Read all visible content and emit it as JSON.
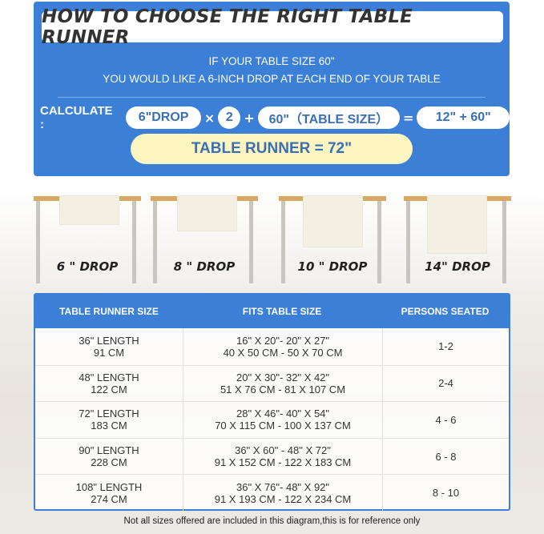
{
  "header": {
    "title": "HOW TO CHOOSE THE RIGHT TABLE RUNNER",
    "intro_line1": "IF YOUR TABLE SIZE 60\"",
    "intro_line2": "YOU WOULD LIKE A 6-INCH DROP AT EACH END OF YOUR TABLE"
  },
  "calculation": {
    "label": "CALCULATE :",
    "drop": "6\"DROP",
    "times": "×",
    "multiplier": "2",
    "plus": "+",
    "table_size": "60\"（TABLE SIZE）",
    "equals": "=",
    "sum": "12\" + 60\"",
    "result": "TABLE RUNNER = 72\""
  },
  "drops": [
    {
      "label": "6 \" DROP",
      "inches": 6
    },
    {
      "label": "8 \" DROP",
      "inches": 8
    },
    {
      "label": "10 \" DROP",
      "inches": 10
    },
    {
      "label": "14\" DROP",
      "inches": 14
    }
  ],
  "size_table": {
    "headers": [
      "TABLE RUNNER SIZE",
      "FITS TABLE SIZE",
      "PERSONS SEATED"
    ],
    "rows": [
      {
        "runner_in": "36\" LENGTH",
        "runner_cm": "91 CM",
        "fits_in": "16\" X 20\"- 20\" X 27\"",
        "fits_cm": "40 X 50 CM - 50 X 70 CM",
        "persons": "1-2"
      },
      {
        "runner_in": "48\" LENGTH",
        "runner_cm": "122 CM",
        "fits_in": "20\" X 30\"- 32\" X 42\"",
        "fits_cm": "51 X 76 CM - 81 X 107 CM",
        "persons": "2-4"
      },
      {
        "runner_in": "72\" LENGTH",
        "runner_cm": "183 CM",
        "fits_in": "28\" X 46\"- 40\" X 54\"",
        "fits_cm": "70 X 115 CM - 100 X 137 CM",
        "persons": "4 - 6"
      },
      {
        "runner_in": "90\" LENGTH",
        "runner_cm": "228 CM",
        "fits_in": "36\" X 60\" - 48\" X 72\"",
        "fits_cm": "91 X 152 CM - 122 X 183 CM",
        "persons": "6 - 8"
      },
      {
        "runner_in": "108\" LENGTH",
        "runner_cm": "274 CM",
        "fits_in": "36\" X 76\"- 48\" X 92\"",
        "fits_cm": "91 X 193 CM - 122 X 234 CM",
        "persons": "8 - 10"
      }
    ]
  },
  "footnote": "Not all sizes offered are included in this diagram,this is for reference only",
  "colors": {
    "accent_blue": "#3b7fd6",
    "result_yellow": "#fdf6c0",
    "table_wood": "#d9a862",
    "runner_cream": "#f3efe2"
  }
}
